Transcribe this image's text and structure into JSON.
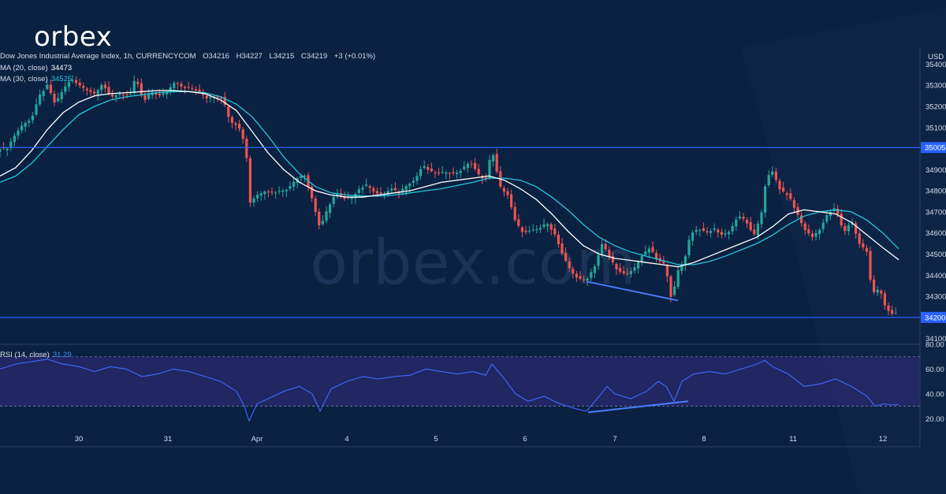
{
  "brand": {
    "logo_text": "orbex",
    "watermark_text": "orbex.com"
  },
  "header": {
    "title": "Dow Jones Industrial Average Index, 1h, CURRENCYCOM",
    "open_label": "O",
    "open_value": "34216",
    "high_label": "H",
    "high_value": "34227",
    "low_label": "L",
    "low_value": "34215",
    "close_label": "C",
    "close_value": "34219",
    "change": "+3 (+0.01%)"
  },
  "indicators": {
    "ma20_label": "MA (20, close)",
    "ma20_value": "34473",
    "ma30_label": "MA (30, close)",
    "ma30_value": "34525",
    "rsi_label": "RSI (14, close)",
    "rsi_value": "31.29"
  },
  "price_axis": {
    "currency": "USD",
    "ticks": [
      35400,
      35300,
      35200,
      35100,
      34900,
      34800,
      34700,
      34600,
      34500,
      34400,
      34300,
      34100
    ]
  },
  "rsi_axis": {
    "ticks": [
      "80.00",
      "60.00",
      "40.00",
      "20.00"
    ]
  },
  "time_axis": [
    {
      "label": "30",
      "t": 100
    },
    {
      "label": "31",
      "t": 213
    },
    {
      "label": "Apr",
      "t": 326
    },
    {
      "label": "4",
      "t": 440
    },
    {
      "label": "5",
      "t": 553
    },
    {
      "label": "6",
      "t": 666
    },
    {
      "label": "7",
      "t": 780
    },
    {
      "label": "8",
      "t": 893
    },
    {
      "label": "11",
      "t": 1006
    },
    {
      "label": "12",
      "t": 1120
    }
  ],
  "colors": {
    "background": "#0b2142",
    "up": "#26a69a",
    "down": "#ef5350",
    "ma20": "#ffffff",
    "ma30": "#26c6da",
    "levels": "#2962ff",
    "rsi_line": "#3f6bff",
    "rsi_band": "#2a2a6e",
    "divergence": "#4c7dff"
  },
  "chart_data": {
    "type": "candlestick",
    "title": "Dow Jones Industrial Average Index, 1h, CURRENCYCOM",
    "ylabel": "USD",
    "ylim": [
      34080,
      35480
    ],
    "horizontal_levels": [
      35005,
      34200
    ],
    "level_labels": [
      "35005",
      "34200"
    ],
    "price_path": [
      [
        -5,
        34990
      ],
      [
        0,
        35000
      ],
      [
        8,
        34995
      ],
      [
        18,
        35060
      ],
      [
        30,
        35120
      ],
      [
        40,
        35140
      ],
      [
        50,
        35250
      ],
      [
        60,
        35300
      ],
      [
        70,
        35210
      ],
      [
        80,
        35280
      ],
      [
        90,
        35330
      ],
      [
        100,
        35300
      ],
      [
        110,
        35280
      ],
      [
        120,
        35260
      ],
      [
        130,
        35310
      ],
      [
        140,
        35240
      ],
      [
        150,
        35260
      ],
      [
        165,
        35250
      ],
      [
        172,
        35340
      ],
      [
        182,
        35220
      ],
      [
        192,
        35270
      ],
      [
        202,
        35250
      ],
      [
        212,
        35270
      ],
      [
        222,
        35320
      ],
      [
        232,
        35290
      ],
      [
        242,
        35285
      ],
      [
        252,
        35270
      ],
      [
        262,
        35240
      ],
      [
        272,
        35250
      ],
      [
        282,
        35240
      ],
      [
        292,
        35130
      ],
      [
        302,
        35110
      ],
      [
        312,
        35010
      ],
      [
        316,
        34740
      ],
      [
        326,
        34780
      ],
      [
        336,
        34800
      ],
      [
        346,
        34790
      ],
      [
        356,
        34800
      ],
      [
        366,
        34810
      ],
      [
        376,
        34860
      ],
      [
        386,
        34880
      ],
      [
        396,
        34760
      ],
      [
        406,
        34620
      ],
      [
        416,
        34720
      ],
      [
        426,
        34790
      ],
      [
        436,
        34760
      ],
      [
        446,
        34770
      ],
      [
        456,
        34810
      ],
      [
        466,
        34830
      ],
      [
        476,
        34790
      ],
      [
        486,
        34780
      ],
      [
        496,
        34810
      ],
      [
        506,
        34790
      ],
      [
        516,
        34830
      ],
      [
        526,
        34850
      ],
      [
        536,
        34920
      ],
      [
        546,
        34890
      ],
      [
        556,
        34880
      ],
      [
        566,
        34890
      ],
      [
        576,
        34880
      ],
      [
        586,
        34900
      ],
      [
        596,
        34940
      ],
      [
        606,
        34880
      ],
      [
        616,
        34850
      ],
      [
        624,
        35000
      ],
      [
        634,
        34820
      ],
      [
        644,
        34780
      ],
      [
        654,
        34650
      ],
      [
        664,
        34600
      ],
      [
        674,
        34610
      ],
      [
        684,
        34620
      ],
      [
        694,
        34650
      ],
      [
        704,
        34590
      ],
      [
        714,
        34490
      ],
      [
        724,
        34420
      ],
      [
        734,
        34380
      ],
      [
        744,
        34380
      ],
      [
        754,
        34440
      ],
      [
        764,
        34550
      ],
      [
        774,
        34480
      ],
      [
        784,
        34420
      ],
      [
        794,
        34400
      ],
      [
        804,
        34430
      ],
      [
        814,
        34490
      ],
      [
        824,
        34530
      ],
      [
        834,
        34470
      ],
      [
        844,
        34450
      ],
      [
        852,
        34280
      ],
      [
        860,
        34420
      ],
      [
        868,
        34470
      ],
      [
        876,
        34600
      ],
      [
        886,
        34620
      ],
      [
        896,
        34600
      ],
      [
        906,
        34620
      ],
      [
        916,
        34590
      ],
      [
        926,
        34610
      ],
      [
        936,
        34680
      ],
      [
        946,
        34660
      ],
      [
        956,
        34580
      ],
      [
        966,
        34700
      ],
      [
        972,
        34860
      ],
      [
        980,
        34890
      ],
      [
        990,
        34800
      ],
      [
        1000,
        34780
      ],
      [
        1010,
        34700
      ],
      [
        1020,
        34620
      ],
      [
        1030,
        34580
      ],
      [
        1040,
        34620
      ],
      [
        1050,
        34690
      ],
      [
        1060,
        34720
      ],
      [
        1070,
        34600
      ],
      [
        1080,
        34660
      ],
      [
        1090,
        34550
      ],
      [
        1100,
        34510
      ],
      [
        1106,
        34310
      ],
      [
        1116,
        34340
      ],
      [
        1122,
        34260
      ],
      [
        1130,
        34215
      ],
      [
        1140,
        34219
      ]
    ],
    "ma20_path": [
      [
        0,
        34870
      ],
      [
        20,
        34910
      ],
      [
        40,
        34990
      ],
      [
        60,
        35090
      ],
      [
        80,
        35170
      ],
      [
        100,
        35220
      ],
      [
        120,
        35250
      ],
      [
        140,
        35260
      ],
      [
        160,
        35265
      ],
      [
        180,
        35270
      ],
      [
        200,
        35275
      ],
      [
        220,
        35275
      ],
      [
        240,
        35270
      ],
      [
        260,
        35260
      ],
      [
        280,
        35230
      ],
      [
        300,
        35180
      ],
      [
        320,
        35080
      ],
      [
        340,
        34980
      ],
      [
        360,
        34900
      ],
      [
        380,
        34840
      ],
      [
        400,
        34800
      ],
      [
        420,
        34780
      ],
      [
        440,
        34770
      ],
      [
        460,
        34770
      ],
      [
        480,
        34780
      ],
      [
        500,
        34790
      ],
      [
        520,
        34800
      ],
      [
        540,
        34820
      ],
      [
        560,
        34840
      ],
      [
        580,
        34850
      ],
      [
        600,
        34860
      ],
      [
        620,
        34870
      ],
      [
        640,
        34850
      ],
      [
        660,
        34810
      ],
      [
        680,
        34760
      ],
      [
        700,
        34690
      ],
      [
        720,
        34610
      ],
      [
        740,
        34540
      ],
      [
        760,
        34500
      ],
      [
        780,
        34480
      ],
      [
        800,
        34470
      ],
      [
        820,
        34460
      ],
      [
        840,
        34450
      ],
      [
        860,
        34440
      ],
      [
        880,
        34460
      ],
      [
        900,
        34490
      ],
      [
        920,
        34520
      ],
      [
        940,
        34550
      ],
      [
        960,
        34580
      ],
      [
        980,
        34630
      ],
      [
        1000,
        34690
      ],
      [
        1020,
        34710
      ],
      [
        1040,
        34700
      ],
      [
        1060,
        34690
      ],
      [
        1080,
        34650
      ],
      [
        1100,
        34590
      ],
      [
        1120,
        34530
      ],
      [
        1140,
        34473
      ]
    ],
    "ma30_path": [
      [
        0,
        34840
      ],
      [
        20,
        34870
      ],
      [
        40,
        34930
      ],
      [
        60,
        35010
      ],
      [
        80,
        35090
      ],
      [
        100,
        35160
      ],
      [
        120,
        35200
      ],
      [
        140,
        35230
      ],
      [
        160,
        35245
      ],
      [
        180,
        35255
      ],
      [
        200,
        35265
      ],
      [
        220,
        35270
      ],
      [
        240,
        35270
      ],
      [
        260,
        35265
      ],
      [
        280,
        35245
      ],
      [
        300,
        35210
      ],
      [
        320,
        35150
      ],
      [
        340,
        35060
      ],
      [
        360,
        34960
      ],
      [
        380,
        34880
      ],
      [
        400,
        34820
      ],
      [
        420,
        34790
      ],
      [
        440,
        34780
      ],
      [
        460,
        34775
      ],
      [
        480,
        34775
      ],
      [
        500,
        34780
      ],
      [
        520,
        34790
      ],
      [
        540,
        34800
      ],
      [
        560,
        34810
      ],
      [
        580,
        34825
      ],
      [
        600,
        34840
      ],
      [
        620,
        34860
      ],
      [
        640,
        34860
      ],
      [
        660,
        34850
      ],
      [
        680,
        34820
      ],
      [
        700,
        34770
      ],
      [
        720,
        34710
      ],
      [
        740,
        34640
      ],
      [
        760,
        34580
      ],
      [
        780,
        34540
      ],
      [
        800,
        34510
      ],
      [
        820,
        34490
      ],
      [
        840,
        34470
      ],
      [
        860,
        34450
      ],
      [
        880,
        34450
      ],
      [
        900,
        34465
      ],
      [
        920,
        34490
      ],
      [
        940,
        34520
      ],
      [
        960,
        34550
      ],
      [
        980,
        34590
      ],
      [
        1000,
        34640
      ],
      [
        1020,
        34680
      ],
      [
        1040,
        34700
      ],
      [
        1060,
        34710
      ],
      [
        1080,
        34700
      ],
      [
        1100,
        34660
      ],
      [
        1120,
        34600
      ],
      [
        1140,
        34525
      ]
    ],
    "rsi": {
      "ylim": [
        10,
        80
      ],
      "band": [
        30,
        70
      ],
      "value": 31.29,
      "path": [
        [
          0,
          60
        ],
        [
          20,
          64
        ],
        [
          40,
          66
        ],
        [
          60,
          68
        ],
        [
          80,
          64
        ],
        [
          100,
          62
        ],
        [
          120,
          58
        ],
        [
          140,
          62
        ],
        [
          160,
          60
        ],
        [
          180,
          54
        ],
        [
          200,
          56
        ],
        [
          220,
          60
        ],
        [
          240,
          58
        ],
        [
          260,
          54
        ],
        [
          280,
          50
        ],
        [
          300,
          42
        ],
        [
          310,
          30
        ],
        [
          316,
          18
        ],
        [
          326,
          32
        ],
        [
          340,
          36
        ],
        [
          360,
          42
        ],
        [
          380,
          46
        ],
        [
          396,
          40
        ],
        [
          406,
          26
        ],
        [
          420,
          44
        ],
        [
          440,
          50
        ],
        [
          460,
          54
        ],
        [
          480,
          52
        ],
        [
          500,
          54
        ],
        [
          520,
          55
        ],
        [
          540,
          60
        ],
        [
          560,
          58
        ],
        [
          580,
          56
        ],
        [
          600,
          58
        ],
        [
          616,
          55
        ],
        [
          624,
          64
        ],
        [
          640,
          52
        ],
        [
          654,
          40
        ],
        [
          670,
          34
        ],
        [
          690,
          38
        ],
        [
          710,
          32
        ],
        [
          730,
          28
        ],
        [
          744,
          26
        ],
        [
          760,
          38
        ],
        [
          770,
          46
        ],
        [
          780,
          40
        ],
        [
          800,
          36
        ],
        [
          820,
          42
        ],
        [
          835,
          50
        ],
        [
          845,
          46
        ],
        [
          855,
          34
        ],
        [
          865,
          50
        ],
        [
          880,
          56
        ],
        [
          900,
          58
        ],
        [
          920,
          56
        ],
        [
          940,
          60
        ],
        [
          960,
          64
        ],
        [
          970,
          67
        ],
        [
          980,
          62
        ],
        [
          1000,
          56
        ],
        [
          1020,
          46
        ],
        [
          1040,
          48
        ],
        [
          1060,
          52
        ],
        [
          1080,
          46
        ],
        [
          1100,
          38
        ],
        [
          1110,
          30
        ],
        [
          1122,
          32
        ],
        [
          1130,
          31
        ],
        [
          1140,
          31.29
        ]
      ]
    },
    "divergence_lines": {
      "price": [
        [
          744,
          34370
        ],
        [
          860,
          34280
        ]
      ],
      "rsi": [
        [
          746,
          25
        ],
        [
          873,
          34
        ]
      ]
    }
  }
}
